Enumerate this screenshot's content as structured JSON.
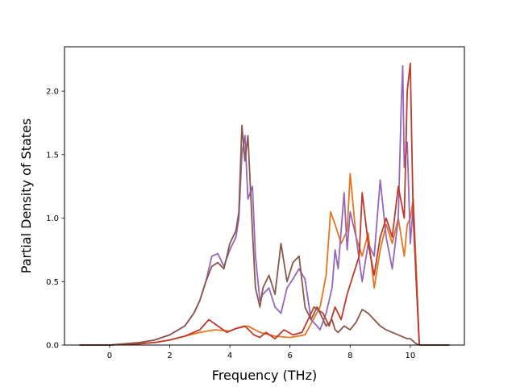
{
  "chart_data": {
    "type": "line",
    "title": "",
    "xlabel": "Frequency (THz)",
    "ylabel": "Partial Density of States",
    "xlim": [
      -1.5,
      11.8
    ],
    "ylim": [
      0.0,
      2.35
    ],
    "xticks": [
      0,
      2,
      4,
      6,
      8,
      10
    ],
    "yticks": [
      0.0,
      0.5,
      1.0,
      1.5,
      2.0
    ],
    "xtick_labels": [
      "0",
      "2",
      "4",
      "6",
      "8",
      "10"
    ],
    "ytick_labels": [
      "0.0",
      "0.5",
      "1.0",
      "1.5",
      "2.0"
    ],
    "grid": false,
    "legend": "none",
    "series": [
      {
        "color": "#e8741e",
        "x": [
          -1,
          0,
          1,
          1.5,
          2,
          2.5,
          3,
          3.5,
          4,
          4.2,
          4.6,
          5,
          5.5,
          6,
          6.5,
          7,
          7.2,
          7.35,
          7.5,
          7.7,
          7.9,
          8.0,
          8.2,
          8.4,
          8.6,
          8.8,
          9.0,
          9.2,
          9.4,
          9.6,
          9.8,
          9.9,
          10.0,
          10.1,
          10.2,
          10.3,
          11.3
        ],
        "y": [
          0,
          0,
          0.01,
          0.02,
          0.04,
          0.07,
          0.1,
          0.12,
          0.11,
          0.13,
          0.15,
          0.1,
          0.07,
          0.06,
          0.08,
          0.3,
          0.55,
          1.05,
          0.95,
          0.8,
          0.9,
          1.35,
          0.85,
          0.7,
          0.88,
          0.45,
          0.75,
          0.95,
          0.8,
          1.0,
          0.7,
          0.95,
          1.0,
          1.15,
          0.6,
          0,
          0
        ]
      },
      {
        "color": "#9467bd",
        "x": [
          -1,
          0,
          1,
          1.5,
          2,
          2.5,
          2.8,
          3.0,
          3.2,
          3.4,
          3.6,
          3.8,
          4.0,
          4.2,
          4.3,
          4.4,
          4.5,
          4.6,
          4.75,
          4.85,
          5.0,
          5.1,
          5.3,
          5.5,
          5.7,
          5.9,
          6.1,
          6.3,
          6.5,
          6.7,
          6.9,
          7.0,
          7.2,
          7.4,
          7.5,
          7.6,
          7.8,
          7.9,
          8.0,
          8.2,
          8.4,
          8.6,
          8.8,
          9.0,
          9.2,
          9.4,
          9.6,
          9.7,
          9.75,
          9.8,
          9.9,
          10.0,
          10.1,
          10.2,
          10.3,
          11.3
        ],
        "y": [
          0,
          0,
          0.02,
          0.04,
          0.08,
          0.15,
          0.25,
          0.35,
          0.5,
          0.7,
          0.72,
          0.62,
          0.75,
          0.85,
          1.0,
          1.5,
          1.65,
          1.15,
          1.25,
          0.7,
          0.35,
          0.4,
          0.45,
          0.3,
          0.25,
          0.45,
          0.52,
          0.6,
          0.52,
          0.2,
          0.15,
          0.12,
          0.25,
          0.45,
          0.75,
          0.6,
          1.2,
          0.75,
          1.05,
          0.85,
          0.5,
          0.8,
          0.7,
          1.3,
          0.85,
          0.6,
          1.0,
          1.9,
          2.2,
          1.4,
          1.6,
          0.8,
          1.1,
          0.5,
          0,
          0
        ]
      },
      {
        "color": "#c0392b",
        "x": [
          -1,
          0,
          1,
          1.5,
          2,
          2.5,
          3,
          3.3,
          3.6,
          3.9,
          4.2,
          4.5,
          4.8,
          5.0,
          5.2,
          5.5,
          5.8,
          6.1,
          6.4,
          6.8,
          7.1,
          7.3,
          7.5,
          7.7,
          7.9,
          8.1,
          8.3,
          8.4,
          8.6,
          8.8,
          9.0,
          9.2,
          9.4,
          9.6,
          9.8,
          9.9,
          10.0,
          10.05,
          10.1,
          10.2,
          10.3,
          11.3
        ],
        "y": [
          0,
          0,
          0.01,
          0.02,
          0.04,
          0.07,
          0.12,
          0.2,
          0.15,
          0.1,
          0.13,
          0.15,
          0.08,
          0.06,
          0.1,
          0.05,
          0.12,
          0.08,
          0.1,
          0.3,
          0.25,
          0.15,
          0.3,
          0.2,
          0.4,
          0.55,
          0.7,
          1.2,
          0.8,
          0.55,
          0.85,
          1.0,
          0.85,
          1.25,
          1.0,
          2.0,
          2.22,
          1.6,
          1.0,
          0.5,
          0,
          0
        ]
      },
      {
        "color": "#8c564b",
        "x": [
          -1,
          0,
          1,
          1.5,
          2,
          2.5,
          2.8,
          3.0,
          3.2,
          3.4,
          3.6,
          3.8,
          4.0,
          4.2,
          4.3,
          4.4,
          4.5,
          4.6,
          4.75,
          4.85,
          5.0,
          5.1,
          5.3,
          5.5,
          5.7,
          5.9,
          6.1,
          6.3,
          6.5,
          6.7,
          6.9,
          7.0,
          7.2,
          7.4,
          7.5,
          7.6,
          7.8,
          8.0,
          8.2,
          8.4,
          8.6,
          8.8,
          9.0,
          9.2,
          9.4,
          9.6,
          9.8,
          9.9,
          10.0,
          10.1,
          10.2,
          10.3,
          11.3
        ],
        "y": [
          0,
          0,
          0.02,
          0.04,
          0.08,
          0.15,
          0.25,
          0.35,
          0.5,
          0.62,
          0.65,
          0.6,
          0.8,
          0.9,
          1.05,
          1.73,
          1.45,
          1.65,
          0.9,
          0.45,
          0.3,
          0.45,
          0.55,
          0.4,
          0.8,
          0.5,
          0.65,
          0.7,
          0.3,
          0.2,
          0.3,
          0.25,
          0.15,
          0.2,
          0.12,
          0.1,
          0.15,
          0.12,
          0.18,
          0.28,
          0.25,
          0.2,
          0.15,
          0.12,
          0.1,
          0.08,
          0.06,
          0.05,
          0.05,
          0.03,
          0.01,
          0,
          0
        ]
      }
    ]
  }
}
